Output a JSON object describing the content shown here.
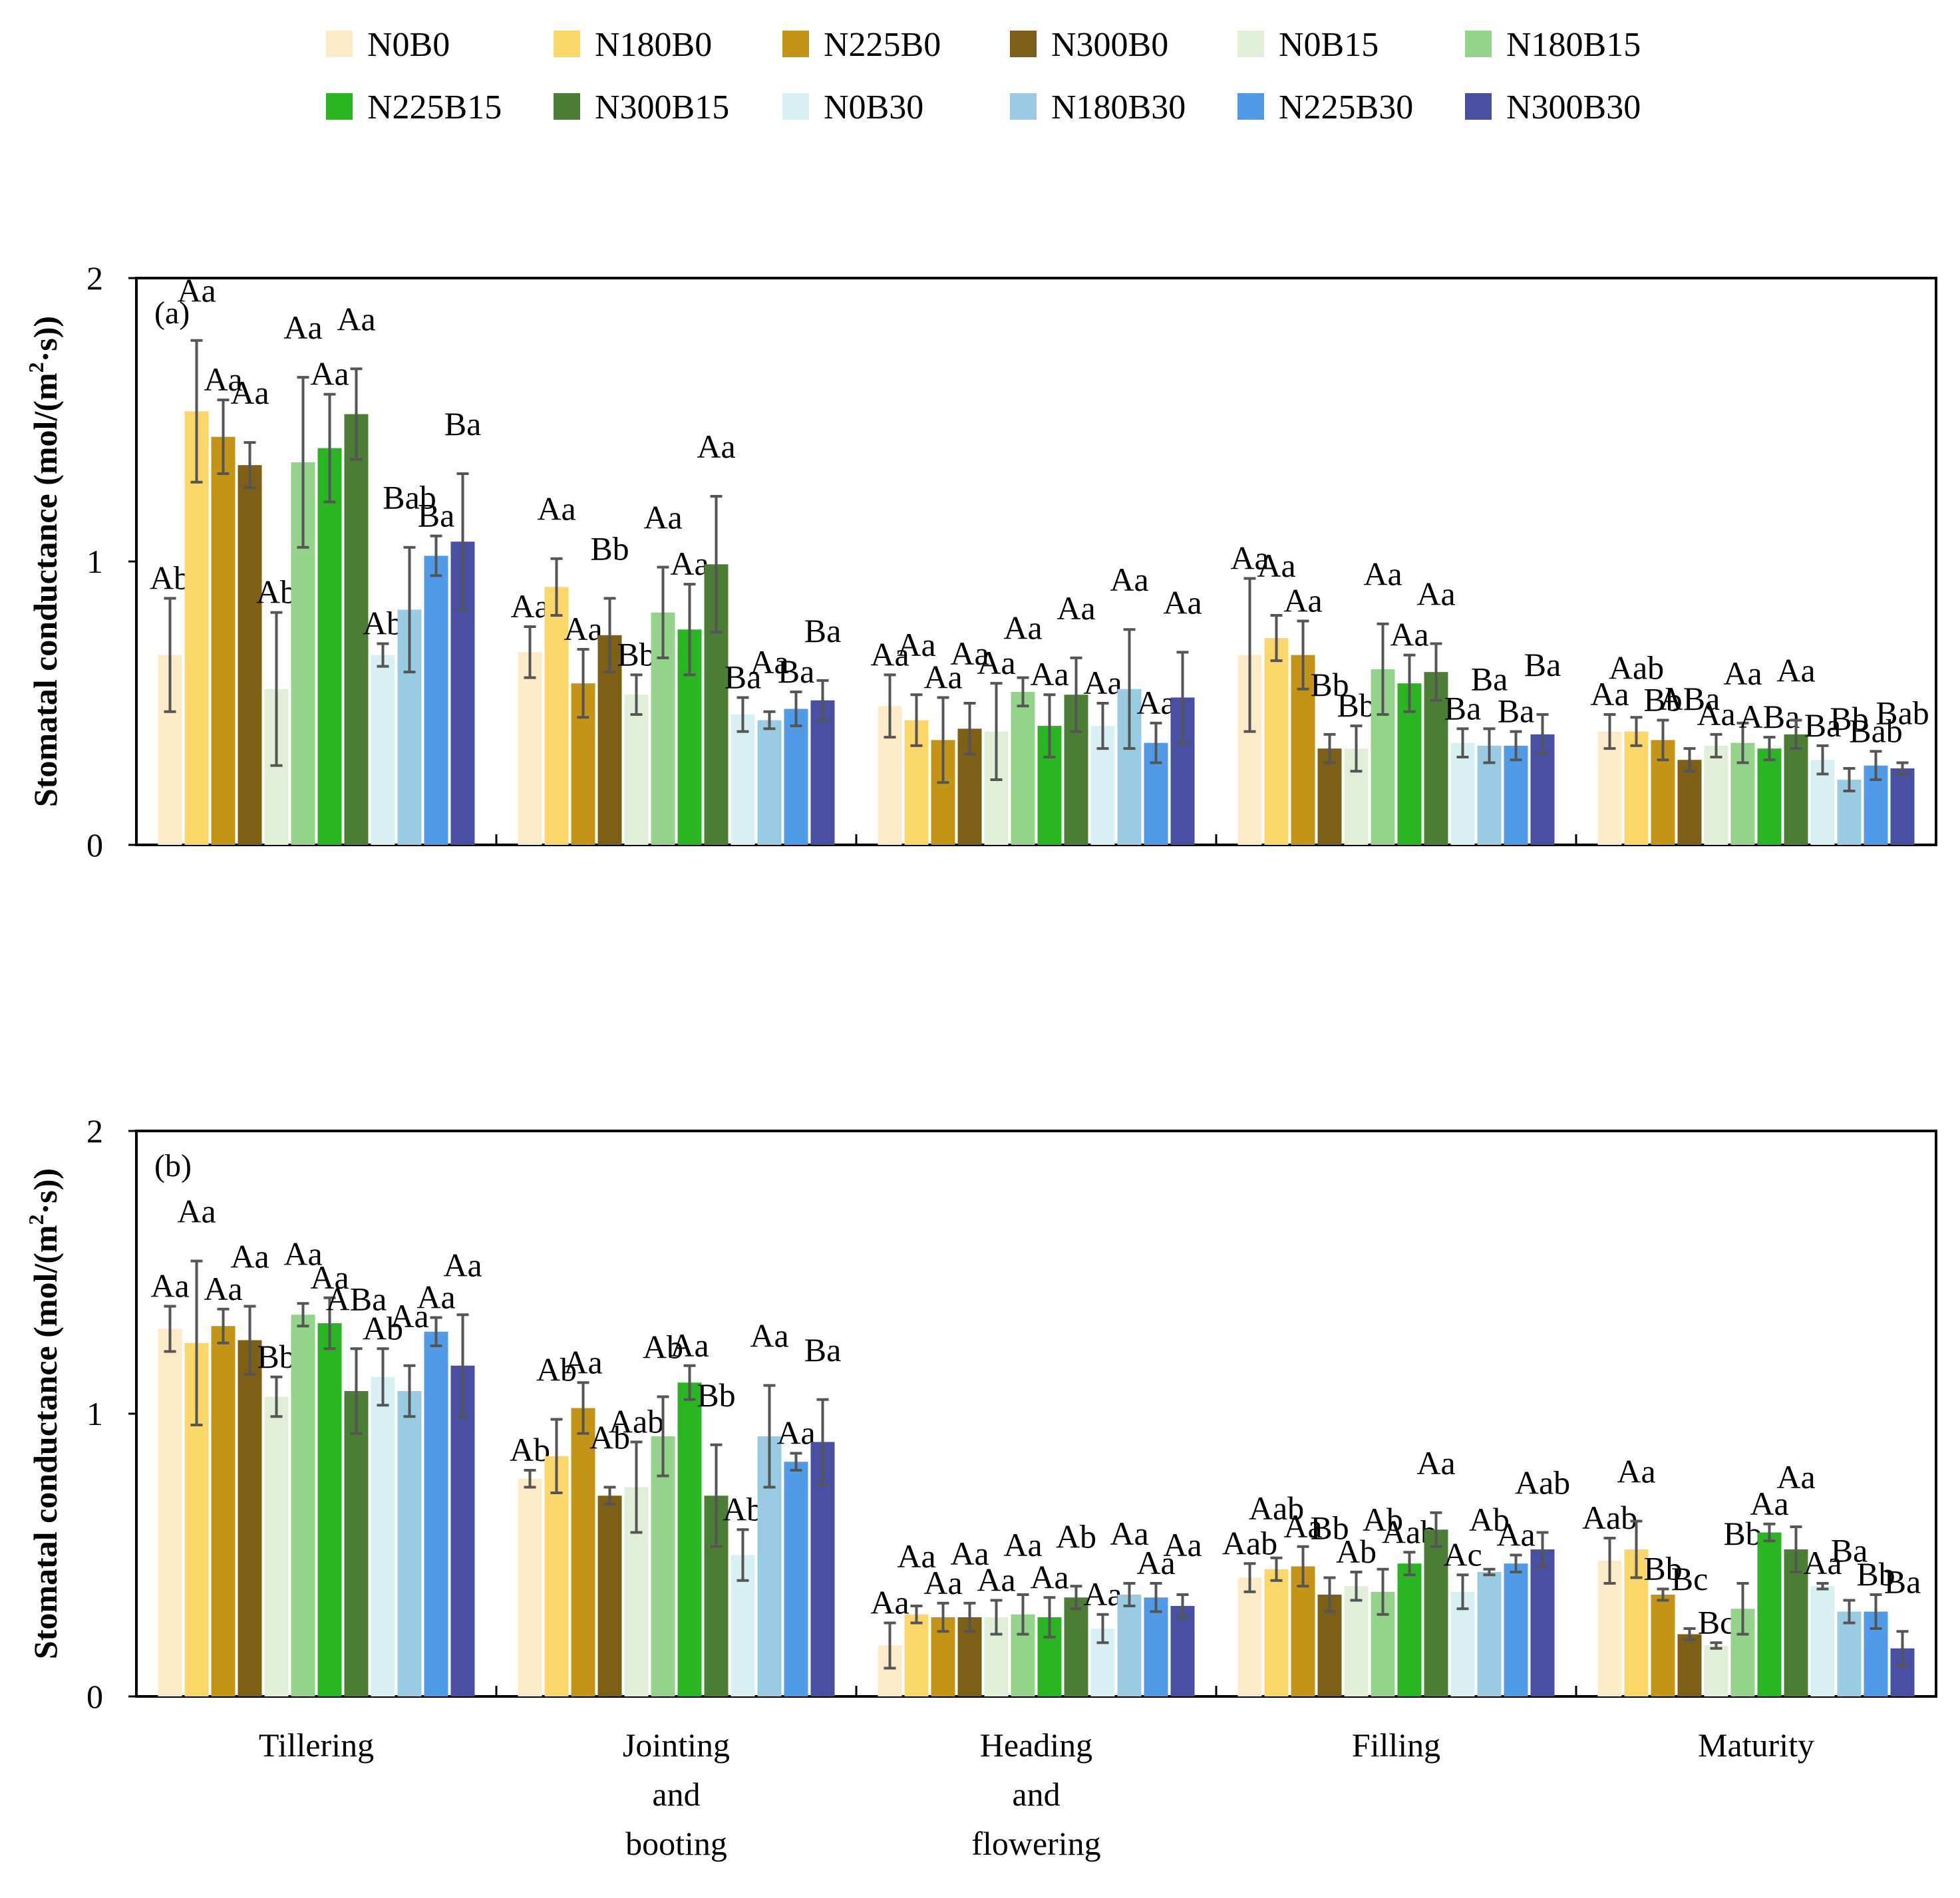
{
  "chart_data": {
    "type": "bar",
    "legend": {
      "placement": "top-center",
      "entries": [
        {
          "name": "N0B0",
          "color": "#FCEBC8"
        },
        {
          "name": "N180B0",
          "color": "#FBD76A"
        },
        {
          "name": "N225B0",
          "color": "#C39416"
        },
        {
          "name": "N300B0",
          "color": "#7D5F16"
        },
        {
          "name": "N0B15",
          "color": "#E1EED8"
        },
        {
          "name": "N180B15",
          "color": "#93D38A"
        },
        {
          "name": "N225B15",
          "color": "#29B622"
        },
        {
          "name": "N300B15",
          "color": "#4C7D35"
        },
        {
          "name": "N0B30",
          "color": "#D8F0F3"
        },
        {
          "name": "N180B30",
          "color": "#99CCE3"
        },
        {
          "name": "N225B30",
          "color": "#4F9BE8"
        },
        {
          "name": "N300B30",
          "color": "#4950A3"
        }
      ]
    },
    "categories": [
      "Tillering",
      "Jointing and booting",
      "Heading and flowering",
      "Filling",
      "Maturity"
    ],
    "category_lines": [
      [
        "Tillering"
      ],
      [
        "Jointing",
        "and",
        "booting"
      ],
      [
        "Heading",
        "and",
        "flowering"
      ],
      [
        "Filling"
      ],
      [
        "Maturity"
      ]
    ],
    "ylabel_main": "Stomatal conductance (mol/(m",
    "ylabel_sup": "2",
    "ylabel_tail_a": "·s))",
    "ylabel_tail_b": "·s))",
    "ylim": [
      0,
      2
    ],
    "yticks": [
      "0",
      "1",
      "2"
    ],
    "panels": [
      {
        "label": "(a)",
        "groups": [
          {
            "values": [
              0.67,
              1.53,
              1.44,
              1.34,
              0.55,
              1.35,
              1.4,
              1.52,
              0.67,
              0.83,
              1.02,
              1.07
            ],
            "errors": [
              0.2,
              0.25,
              0.13,
              0.08,
              0.27,
              0.3,
              0.19,
              0.16,
              0.04,
              0.22,
              0.07,
              0.24
            ],
            "labels": [
              "Ab",
              "Aa",
              "Aa",
              "Aa",
              "Ab",
              "Aa",
              "Aa",
              "Aa",
              "Ab",
              "Bab",
              "Ba",
              "Ba"
            ]
          },
          {
            "values": [
              0.68,
              0.91,
              0.57,
              0.74,
              0.53,
              0.82,
              0.76,
              0.99,
              0.46,
              0.44,
              0.48,
              0.51
            ],
            "errors": [
              0.09,
              0.1,
              0.12,
              0.13,
              0.07,
              0.16,
              0.16,
              0.24,
              0.06,
              0.03,
              0.06,
              0.07
            ],
            "labels": [
              "Aa",
              "Aa",
              "Aa",
              "Bb",
              "Bb",
              "Aa",
              "Aa",
              "Aa",
              "Ba",
              "Aa",
              "Ba",
              "Ba"
            ]
          },
          {
            "values": [
              0.49,
              0.44,
              0.37,
              0.41,
              0.4,
              0.54,
              0.42,
              0.53,
              0.42,
              0.55,
              0.36,
              0.52
            ],
            "errors": [
              0.11,
              0.09,
              0.15,
              0.09,
              0.17,
              0.05,
              0.11,
              0.13,
              0.08,
              0.21,
              0.07,
              0.16
            ],
            "labels": [
              "Aa",
              "Aa",
              "Aa",
              "Aa",
              "Aa",
              "Aa",
              "Aa",
              "Aa",
              "Aa",
              "Aa",
              "Aa",
              "Aa"
            ]
          },
          {
            "values": [
              0.67,
              0.73,
              0.67,
              0.34,
              0.34,
              0.62,
              0.57,
              0.61,
              0.36,
              0.35,
              0.35,
              0.39
            ],
            "errors": [
              0.27,
              0.08,
              0.12,
              0.05,
              0.08,
              0.16,
              0.1,
              0.1,
              0.05,
              0.06,
              0.05,
              0.07
            ],
            "labels": [
              "Aa",
              "Aa",
              "Aa",
              "Bb",
              "Bb",
              "Aa",
              "Aa",
              "Aa",
              "Ba",
              "Ba",
              "Ba",
              "Ba"
            ]
          },
          {
            "values": [
              0.4,
              0.4,
              0.37,
              0.3,
              0.35,
              0.36,
              0.34,
              0.39,
              0.3,
              0.23,
              0.28,
              0.27
            ],
            "errors": [
              0.06,
              0.05,
              0.07,
              0.04,
              0.04,
              0.07,
              0.04,
              0.05,
              0.05,
              0.04,
              0.05,
              0.02
            ],
            "labels": [
              "Aa",
              "Aab",
              "Bb",
              "ABa",
              "Aa",
              "Aa",
              "ABa",
              "Aa",
              "Ba",
              "Bb",
              "Bab",
              "Bab"
            ]
          }
        ]
      },
      {
        "label": "(b)",
        "groups": [
          {
            "values": [
              1.3,
              1.25,
              1.31,
              1.26,
              1.06,
              1.35,
              1.32,
              1.08,
              1.13,
              1.08,
              1.29,
              1.17
            ],
            "errors": [
              0.08,
              0.29,
              0.06,
              0.12,
              0.07,
              0.04,
              0.09,
              0.15,
              0.1,
              0.09,
              0.05,
              0.18
            ],
            "labels": [
              "Aa",
              "Aa",
              "Aa",
              "Aa",
              "Bb",
              "Aa",
              "Aa",
              "ABa",
              "Ab",
              "Aa",
              "Aa",
              "Aa"
            ]
          },
          {
            "values": [
              0.77,
              0.85,
              1.02,
              0.71,
              0.74,
              0.92,
              1.11,
              0.71,
              0.5,
              0.92,
              0.83,
              0.9
            ],
            "errors": [
              0.03,
              0.13,
              0.09,
              0.03,
              0.16,
              0.14,
              0.06,
              0.18,
              0.09,
              0.18,
              0.03,
              0.15
            ],
            "labels": [
              "Ab",
              "Ab",
              "Aa",
              "Ab",
              "Aab",
              "Ab",
              "Aa",
              "Bb",
              "Ab",
              "Aa",
              "Aa",
              "Ba"
            ]
          },
          {
            "values": [
              0.18,
              0.29,
              0.28,
              0.28,
              0.28,
              0.29,
              0.28,
              0.35,
              0.24,
              0.36,
              0.35,
              0.32
            ],
            "errors": [
              0.08,
              0.03,
              0.05,
              0.05,
              0.06,
              0.07,
              0.07,
              0.04,
              0.05,
              0.04,
              0.05,
              0.04
            ],
            "labels": [
              "Aa",
              "Aa",
              "Aa",
              "Aa",
              "Aa",
              "Aa",
              "Aa",
              "Ab",
              "Aa",
              "Aa",
              "Aa",
              "Aa"
            ]
          },
          {
            "values": [
              0.42,
              0.45,
              0.46,
              0.36,
              0.39,
              0.37,
              0.47,
              0.59,
              0.37,
              0.44,
              0.47,
              0.52
            ],
            "errors": [
              0.05,
              0.04,
              0.07,
              0.06,
              0.05,
              0.08,
              0.04,
              0.06,
              0.06,
              0.01,
              0.03,
              0.06
            ],
            "labels": [
              "Aab",
              "Aab",
              "Aa",
              "Bb",
              "Ab",
              "Ab",
              "Aab",
              "Aa",
              "Ac",
              "Ab",
              "Aa",
              "Aab"
            ]
          },
          {
            "values": [
              0.48,
              0.52,
              0.36,
              0.22,
              0.18,
              0.31,
              0.58,
              0.52,
              0.39,
              0.3,
              0.3,
              0.17
            ],
            "errors": [
              0.08,
              0.1,
              0.02,
              0.02,
              0.01,
              0.09,
              0.03,
              0.08,
              0.01,
              0.04,
              0.06,
              0.06
            ],
            "labels": [
              "Aab",
              "Aa",
              "Bb",
              "Bc",
              "Bc",
              "Bb",
              "Aa",
              "Aa",
              "Aa",
              "Ba",
              "Bb",
              "Ba"
            ]
          }
        ]
      }
    ]
  }
}
